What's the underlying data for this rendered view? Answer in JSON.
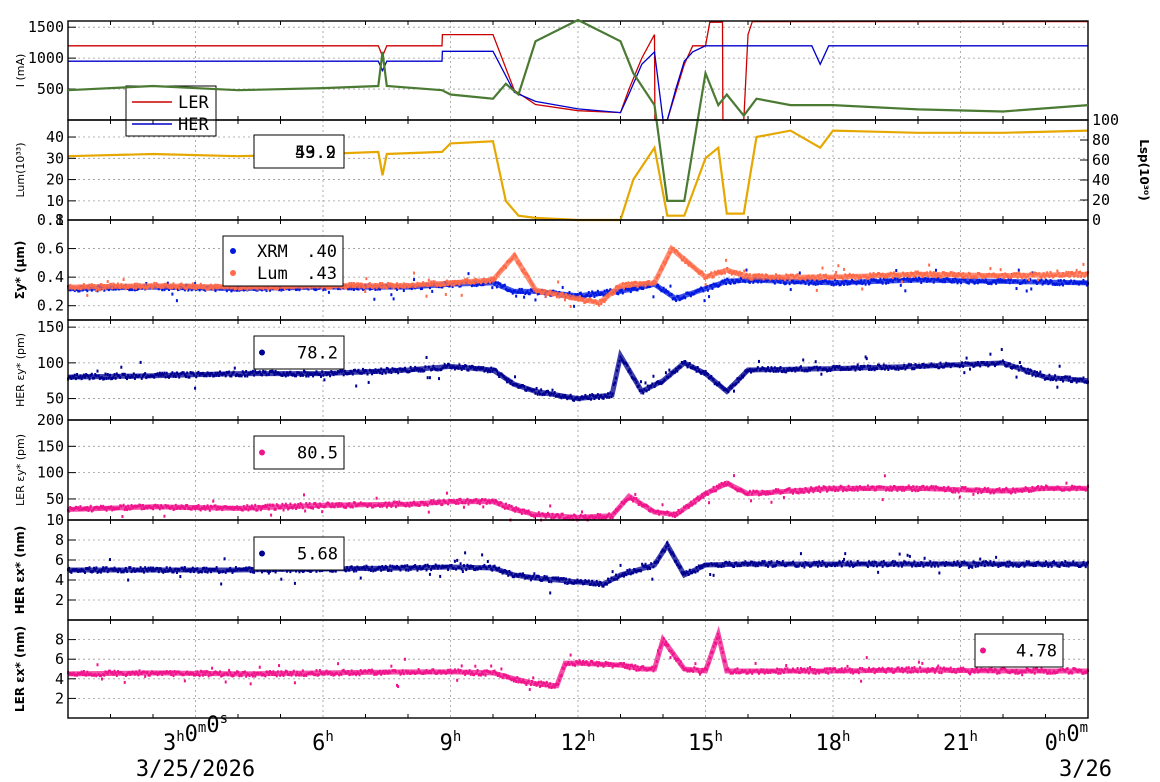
{
  "chart_data": [
    {
      "type": "line",
      "ylabel": "I (mA)",
      "ylim": [
        0,
        1600
      ],
      "yticks": [
        500,
        1000,
        1500
      ],
      "legend_values": [],
      "series": [
        {
          "name": "LER",
          "color": "#cc0000",
          "x": [
            0,
            3,
            7.3,
            7.4,
            7.5,
            8.8,
            8.81,
            9.9,
            10,
            10.5,
            11,
            12,
            13,
            13.2,
            13.5,
            13.8,
            13.81,
            14.0,
            14.1,
            14.3,
            14.5,
            14.7,
            15,
            15.1,
            15.4,
            15.41,
            15.5,
            15.9,
            16.0,
            16.1,
            17.5,
            17.7,
            17.9,
            20,
            24
          ],
          "y": [
            1200,
            1200,
            1200,
            1030,
            1200,
            1200,
            1380,
            1380,
            1380,
            480,
            250,
            150,
            120,
            500,
            1000,
            1380,
            0,
            0,
            0,
            450,
            900,
            1200,
            1200,
            1580,
            1580,
            0,
            0,
            0,
            1380,
            1590,
            1590,
            1590,
            1590,
            1590,
            1590
          ]
        },
        {
          "name": "HER",
          "color": "#0000cc",
          "x": [
            0,
            3,
            7.3,
            7.4,
            7.5,
            8.8,
            8.81,
            9.9,
            10,
            10.5,
            11,
            12,
            13,
            13.2,
            13.5,
            13.8,
            14.0,
            14.1,
            14.3,
            14.5,
            14.7,
            15,
            15.5,
            16.0,
            16.1,
            17.5,
            17.7,
            17.9,
            20,
            24
          ],
          "y": [
            950,
            950,
            950,
            800,
            950,
            950,
            1110,
            1110,
            1110,
            450,
            300,
            180,
            120,
            420,
            900,
            1100,
            0,
            0,
            500,
            950,
            1100,
            1200,
            1200,
            1200,
            1200,
            1200,
            900,
            1200,
            1200,
            1200
          ]
        }
      ]
    },
    {
      "type": "line",
      "ylabel": "Lum(10³³)",
      "ylabel2": "Lsp(10³⁰)",
      "ylim": [
        1,
        48
      ],
      "yticks": [
        1,
        10,
        20,
        30,
        40
      ],
      "y2lim": [
        0,
        100
      ],
      "y2ticks": [
        0,
        20,
        40,
        60,
        80,
        100
      ],
      "legend_values": [
        "59.2",
        "43.9"
      ],
      "series": [
        {
          "name": "Lum",
          "color": "#e6a800",
          "x": [
            0,
            2,
            4,
            6,
            7.3,
            7.4,
            7.5,
            8.8,
            9,
            10,
            10.3,
            10.6,
            11,
            12,
            12.5,
            13,
            13.3,
            13.8,
            14.1,
            14.5,
            15,
            15.3,
            15.5,
            15.9,
            16.2,
            17,
            17.7,
            18,
            20,
            22,
            24
          ],
          "y": [
            31,
            32,
            31,
            32,
            33,
            22,
            32,
            33,
            37,
            38,
            10,
            3,
            2,
            1,
            1,
            1,
            20,
            35,
            3,
            3,
            30,
            35,
            4,
            4,
            40,
            43,
            35,
            43,
            42,
            42,
            43
          ]
        },
        {
          "name": "Lsp",
          "color": "#4b7a33",
          "x": [
            0,
            2,
            4,
            6,
            7.3,
            7.4,
            7.5,
            8.8,
            9,
            10,
            10.3,
            10.6,
            11,
            12,
            12.5,
            13,
            13.3,
            13.8,
            14.1,
            14.5,
            15,
            15.3,
            15.5,
            15.9,
            16.2,
            17,
            18,
            20,
            22,
            24
          ],
          "y": [
            62,
            64,
            62,
            63,
            64,
            80,
            64,
            62,
            60,
            58,
            65,
            60,
            85,
            95,
            90,
            85,
            70,
            55,
            10,
            10,
            70,
            55,
            60,
            50,
            58,
            55,
            55,
            53,
            52,
            55
          ]
        }
      ]
    },
    {
      "type": "scatter",
      "ylabel": "Σy* (µm)",
      "ylim": [
        0.1,
        0.8
      ],
      "yticks": [
        0.2,
        0.4,
        0.6,
        0.8
      ],
      "legend_values": [
        ".40",
        ".43"
      ],
      "series": [
        {
          "name": "XRM",
          "color": "#0018e0",
          "x": [
            0,
            2,
            4,
            6,
            8,
            9,
            10,
            10.5,
            11,
            12,
            13,
            13.8,
            14.3,
            15,
            15.5,
            16,
            18,
            20,
            22,
            24
          ],
          "y": [
            0.32,
            0.33,
            0.32,
            0.33,
            0.33,
            0.35,
            0.36,
            0.3,
            0.3,
            0.27,
            0.3,
            0.35,
            0.25,
            0.32,
            0.37,
            0.38,
            0.36,
            0.38,
            0.37,
            0.36
          ]
        },
        {
          "name": "Lum",
          "color": "#ff6b4a",
          "x": [
            0,
            2,
            4,
            6,
            8,
            9,
            10,
            10.5,
            11,
            12,
            12.5,
            13,
            13.8,
            14.2,
            15,
            15.5,
            16,
            18,
            20,
            22,
            24
          ],
          "y": [
            0.33,
            0.34,
            0.33,
            0.34,
            0.34,
            0.36,
            0.38,
            0.55,
            0.31,
            0.25,
            0.22,
            0.34,
            0.36,
            0.6,
            0.4,
            0.45,
            0.4,
            0.4,
            0.42,
            0.41,
            0.42
          ]
        }
      ]
    },
    {
      "type": "scatter",
      "ylabel": "HER εy* (pm)",
      "ylim": [
        20,
        160
      ],
      "yticks": [
        50,
        100,
        150
      ],
      "legend_values": [
        "78.2"
      ],
      "series": [
        {
          "name": "HER εy*",
          "color": "#000090",
          "x": [
            0,
            2,
            4,
            6,
            8,
            9,
            10,
            10.5,
            11,
            12,
            12.8,
            13,
            13.5,
            14,
            14.5,
            15,
            15.5,
            16,
            18,
            20,
            22,
            23,
            24
          ],
          "y": [
            80,
            82,
            85,
            85,
            90,
            95,
            90,
            70,
            60,
            50,
            55,
            110,
            60,
            75,
            100,
            85,
            60,
            90,
            92,
            95,
            100,
            80,
            75
          ]
        }
      ]
    },
    {
      "type": "scatter",
      "ylabel": "LER εy* (pm)",
      "ylim": [
        10,
        200
      ],
      "yticks": [
        10,
        50,
        100,
        150,
        200
      ],
      "legend_values": [
        "80.5"
      ],
      "series": [
        {
          "name": "LER εy*",
          "color": "#f0148c",
          "x": [
            0,
            2,
            4,
            6,
            8,
            9,
            10,
            10.5,
            11,
            12,
            12.8,
            13.2,
            13.8,
            14.3,
            15,
            15.5,
            16,
            18,
            20,
            22,
            23,
            24
          ],
          "y": [
            30,
            35,
            32,
            38,
            40,
            45,
            45,
            30,
            20,
            15,
            18,
            55,
            25,
            20,
            60,
            80,
            60,
            70,
            70,
            65,
            70,
            70
          ]
        }
      ]
    },
    {
      "type": "scatter",
      "ylabel": "HER εx* (nm)",
      "ylim": [
        0,
        10
      ],
      "yticks": [
        2,
        4,
        6,
        8
      ],
      "legend_values": [
        "5.68"
      ],
      "series": [
        {
          "name": "HER εx*",
          "color": "#000090",
          "x": [
            0,
            2,
            4,
            6,
            8,
            9,
            10,
            10.5,
            11,
            12,
            12.6,
            13,
            13.8,
            14.1,
            14.5,
            15,
            16,
            18,
            20,
            22,
            24
          ],
          "y": [
            5.0,
            5.0,
            5.0,
            5.1,
            5.2,
            5.3,
            5.2,
            4.5,
            4.2,
            3.8,
            3.6,
            4.5,
            5.5,
            7.5,
            4.5,
            5.5,
            5.6,
            5.6,
            5.6,
            5.6,
            5.6
          ]
        }
      ]
    },
    {
      "type": "scatter",
      "ylabel": "LER εx* (nm)",
      "ylim": [
        0,
        10
      ],
      "yticks": [
        2,
        4,
        6,
        8
      ],
      "legend_values": [
        "4.78"
      ],
      "series": [
        {
          "name": "LER εx*",
          "color": "#f0148c",
          "x": [
            0,
            2,
            4,
            6,
            8,
            9,
            10,
            10.5,
            11,
            11.5,
            11.7,
            12,
            13,
            13.5,
            13.8,
            14,
            14.5,
            15,
            15.3,
            15.5,
            16,
            18,
            20,
            22,
            24
          ],
          "y": [
            4.5,
            4.6,
            4.5,
            4.6,
            4.7,
            4.7,
            4.6,
            4.0,
            3.5,
            3.3,
            5.6,
            5.6,
            5.4,
            5.0,
            5.0,
            8.0,
            5.0,
            4.8,
            8.5,
            4.8,
            4.8,
            4.8,
            4.9,
            4.8,
            4.8
          ]
        }
      ]
    }
  ],
  "xaxis": {
    "xlim": [
      0,
      24
    ],
    "ticks": [
      {
        "x": 3,
        "main": "3",
        "sup": "h",
        "main2": "0",
        "sup2": "m",
        "main3": "0",
        "sup3": "s"
      },
      {
        "x": 6,
        "main": "6",
        "sup": "h"
      },
      {
        "x": 9,
        "main": "9",
        "sup": "h"
      },
      {
        "x": 12,
        "main": "12",
        "sup": "h"
      },
      {
        "x": 15,
        "main": "15",
        "sup": "h"
      },
      {
        "x": 18,
        "main": "18",
        "sup": "h"
      },
      {
        "x": 21,
        "main": "21",
        "sup": "h"
      },
      {
        "x": 24,
        "main": "0",
        "sup": "h",
        "main2": "0",
        "sup2": "m"
      }
    ],
    "date_left": "3/25/2026",
    "date_right": "3/26"
  }
}
